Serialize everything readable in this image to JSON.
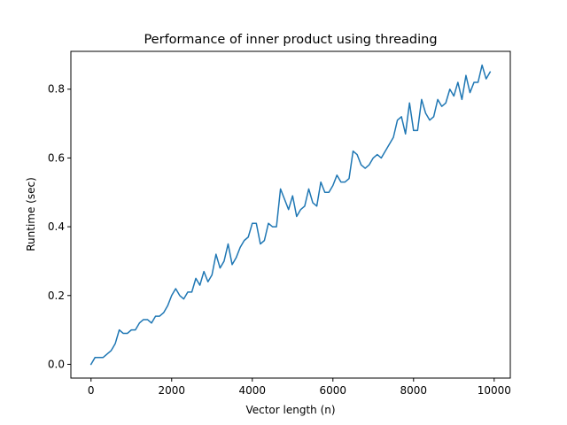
{
  "chart_data": {
    "type": "line",
    "title": "Performance of inner product using threading",
    "xlabel": "Vector length (n)",
    "ylabel": "Runtime (sec)",
    "xlim": [
      -500,
      10400
    ],
    "ylim": [
      -0.04,
      0.91
    ],
    "xticks": [
      0,
      2000,
      4000,
      6000,
      8000,
      10000
    ],
    "xtick_labels": [
      "0",
      "2000",
      "4000",
      "6000",
      "8000",
      "10000"
    ],
    "yticks": [
      0.0,
      0.2,
      0.4,
      0.6,
      0.8
    ],
    "ytick_labels": [
      "0.0",
      "0.2",
      "0.4",
      "0.6",
      "0.8"
    ],
    "grid": false,
    "legend": "none",
    "series": [
      {
        "color": "#1f77b4",
        "x": [
          0,
          100,
          200,
          300,
          400,
          500,
          600,
          700,
          800,
          900,
          1000,
          1100,
          1200,
          1300,
          1400,
          1500,
          1600,
          1700,
          1800,
          1900,
          2000,
          2100,
          2200,
          2300,
          2400,
          2500,
          2600,
          2700,
          2800,
          2900,
          3000,
          3100,
          3200,
          3300,
          3400,
          3500,
          3600,
          3700,
          3800,
          3900,
          4000,
          4100,
          4200,
          4300,
          4400,
          4500,
          4600,
          4700,
          4800,
          4900,
          5000,
          5100,
          5200,
          5300,
          5400,
          5500,
          5600,
          5700,
          5800,
          5900,
          6000,
          6100,
          6200,
          6300,
          6400,
          6500,
          6600,
          6700,
          6800,
          6900,
          7000,
          7100,
          7200,
          7300,
          7400,
          7500,
          7600,
          7700,
          7800,
          7900,
          8000,
          8100,
          8200,
          8300,
          8400,
          8500,
          8600,
          8700,
          8800,
          8900,
          9000,
          9100,
          9200,
          9300,
          9400,
          9500,
          9600,
          9700,
          9800,
          9900
        ],
        "y": [
          0.0,
          0.02,
          0.02,
          0.02,
          0.03,
          0.04,
          0.06,
          0.1,
          0.09,
          0.09,
          0.1,
          0.1,
          0.12,
          0.13,
          0.13,
          0.12,
          0.14,
          0.14,
          0.15,
          0.17,
          0.2,
          0.22,
          0.2,
          0.19,
          0.21,
          0.21,
          0.25,
          0.23,
          0.27,
          0.24,
          0.26,
          0.32,
          0.28,
          0.3,
          0.35,
          0.29,
          0.31,
          0.34,
          0.36,
          0.37,
          0.41,
          0.41,
          0.35,
          0.36,
          0.41,
          0.4,
          0.4,
          0.51,
          0.48,
          0.45,
          0.49,
          0.43,
          0.45,
          0.46,
          0.51,
          0.47,
          0.46,
          0.53,
          0.5,
          0.5,
          0.52,
          0.55,
          0.53,
          0.53,
          0.54,
          0.62,
          0.61,
          0.58,
          0.57,
          0.58,
          0.6,
          0.61,
          0.6,
          0.62,
          0.64,
          0.66,
          0.71,
          0.72,
          0.67,
          0.76,
          0.68,
          0.68,
          0.77,
          0.73,
          0.71,
          0.72,
          0.77,
          0.75,
          0.76,
          0.8,
          0.78,
          0.82,
          0.77,
          0.84,
          0.79,
          0.82,
          0.82,
          0.87,
          0.83,
          0.85
        ]
      }
    ]
  }
}
